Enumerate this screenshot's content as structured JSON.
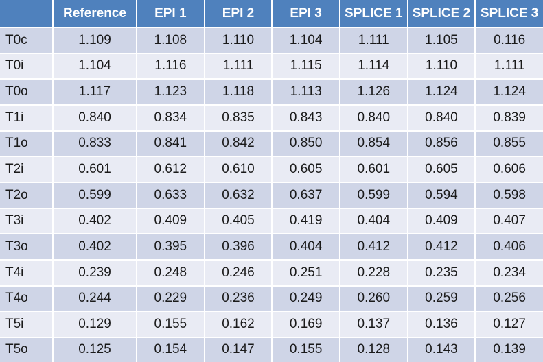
{
  "colors": {
    "header_bg": "#4F81BD",
    "header_text": "#FFFFFF",
    "band_dark": "#CFD5E7",
    "band_light": "#E9EBF4",
    "cell_text": "#1A1A1A",
    "grid_line": "#FFFFFF"
  },
  "chart_data": {
    "type": "table",
    "columns": [
      "",
      "Reference",
      "EPI 1",
      "EPI 2",
      "EPI 3",
      "SPLICE 1",
      "SPLICE 2",
      "SPLICE 3"
    ],
    "rows": [
      {
        "label": "T0c",
        "values": [
          "1.109",
          "1.108",
          "1.110",
          "1.104",
          "1.111",
          "1.105",
          "0.116"
        ]
      },
      {
        "label": "T0i",
        "values": [
          "1.104",
          "1.116",
          "1.111",
          "1.115",
          "1.114",
          "1.110",
          "1.111"
        ]
      },
      {
        "label": "T0o",
        "values": [
          "1.117",
          "1.123",
          "1.118",
          "1.113",
          "1.126",
          "1.124",
          "1.124"
        ]
      },
      {
        "label": "T1i",
        "values": [
          "0.840",
          "0.834",
          "0.835",
          "0.843",
          "0.840",
          "0.840",
          "0.839"
        ]
      },
      {
        "label": "T1o",
        "values": [
          "0.833",
          "0.841",
          "0.842",
          "0.850",
          "0.854",
          "0.856",
          "0.855"
        ]
      },
      {
        "label": "T2i",
        "values": [
          "0.601",
          "0.612",
          "0.610",
          "0.605",
          "0.601",
          "0.605",
          "0.606"
        ]
      },
      {
        "label": "T2o",
        "values": [
          "0.599",
          "0.633",
          "0.632",
          "0.637",
          "0.599",
          "0.594",
          "0.598"
        ]
      },
      {
        "label": "T3i",
        "values": [
          "0.402",
          "0.409",
          "0.405",
          "0.419",
          "0.404",
          "0.409",
          "0.407"
        ]
      },
      {
        "label": "T3o",
        "values": [
          "0.402",
          "0.395",
          "0.396",
          "0.404",
          "0.412",
          "0.412",
          "0.406"
        ]
      },
      {
        "label": "T4i",
        "values": [
          "0.239",
          "0.248",
          "0.246",
          "0.251",
          "0.228",
          "0.235",
          "0.234"
        ]
      },
      {
        "label": "T4o",
        "values": [
          "0.244",
          "0.229",
          "0.236",
          "0.249",
          "0.260",
          "0.259",
          "0.256"
        ]
      },
      {
        "label": "T5i",
        "values": [
          "0.129",
          "0.155",
          "0.162",
          "0.169",
          "0.137",
          "0.136",
          "0.127"
        ]
      },
      {
        "label": "T5o",
        "values": [
          "0.125",
          "0.154",
          "0.147",
          "0.155",
          "0.128",
          "0.143",
          "0.139"
        ]
      }
    ]
  }
}
